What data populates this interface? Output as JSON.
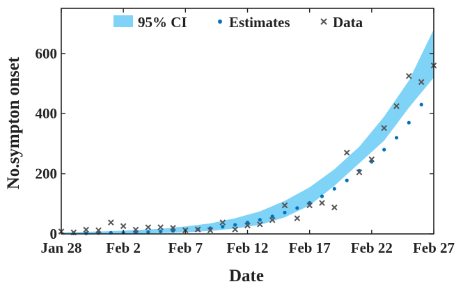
{
  "chart_data": {
    "type": "scatter",
    "xlabel": "Date",
    "ylabel": "No.sympton onset",
    "x_tick_labels": [
      "Jan 28",
      "Feb 2",
      "Feb 7",
      "Feb 12",
      "Feb 17",
      "Feb 22",
      "Feb 27"
    ],
    "y_tick_labels": [
      "0",
      "200",
      "400",
      "600"
    ],
    "xlim": [
      "2020-01-28",
      "2020-02-27"
    ],
    "ylim": [
      0,
      750
    ],
    "y_ticks": [
      0,
      200,
      400,
      600
    ],
    "legend_position": "top",
    "legend": [
      "95% CI",
      "Estimates",
      "Data"
    ],
    "colors": {
      "ci_band": "#7fd3f7",
      "estimates": "#0072bd",
      "data": "#555555"
    },
    "ci_band": {
      "x": [
        "2020-01-28",
        "2020-01-30",
        "2020-02-01",
        "2020-02-03",
        "2020-02-05",
        "2020-02-07",
        "2020-02-09",
        "2020-02-11",
        "2020-02-13",
        "2020-02-15",
        "2020-02-17",
        "2020-02-19",
        "2020-02-21",
        "2020-02-23",
        "2020-02-25",
        "2020-02-27"
      ],
      "lower": [
        0,
        0,
        0,
        1,
        3,
        5,
        10,
        18,
        30,
        55,
        95,
        160,
        235,
        310,
        420,
        520
      ],
      "upper": [
        5,
        7,
        9,
        13,
        17,
        25,
        35,
        52,
        75,
        110,
        155,
        215,
        290,
        390,
        510,
        680
      ]
    },
    "series": [
      {
        "name": "Estimates",
        "marker": "dot",
        "x": [
          "2020-01-29",
          "2020-01-30",
          "2020-01-31",
          "2020-02-01",
          "2020-02-02",
          "2020-02-03",
          "2020-02-04",
          "2020-02-05",
          "2020-02-06",
          "2020-02-07",
          "2020-02-08",
          "2020-02-09",
          "2020-02-10",
          "2020-02-11",
          "2020-02-12",
          "2020-02-13",
          "2020-02-14",
          "2020-02-15",
          "2020-02-16",
          "2020-02-17",
          "2020-02-18",
          "2020-02-19",
          "2020-02-20",
          "2020-02-21",
          "2020-02-22",
          "2020-02-23",
          "2020-02-24",
          "2020-02-25",
          "2020-02-26"
        ],
        "y": [
          2,
          2,
          3,
          4,
          4,
          5,
          6,
          8,
          10,
          12,
          15,
          19,
          24,
          30,
          38,
          47,
          58,
          71,
          86,
          103,
          125,
          150,
          178,
          210,
          240,
          280,
          320,
          370,
          430
        ]
      },
      {
        "name": "Data",
        "marker": "x",
        "x": [
          "2020-01-28",
          "2020-01-29",
          "2020-01-30",
          "2020-01-31",
          "2020-02-01",
          "2020-02-02",
          "2020-02-03",
          "2020-02-04",
          "2020-02-05",
          "2020-02-06",
          "2020-02-07",
          "2020-02-08",
          "2020-02-09",
          "2020-02-10",
          "2020-02-11",
          "2020-02-12",
          "2020-02-13",
          "2020-02-14",
          "2020-02-15",
          "2020-02-16",
          "2020-02-17",
          "2020-02-18",
          "2020-02-19",
          "2020-02-20",
          "2020-02-21",
          "2020-02-22",
          "2020-02-23",
          "2020-02-24",
          "2020-02-25",
          "2020-02-26",
          "2020-02-27"
        ],
        "y": [
          8,
          5,
          14,
          12,
          38,
          26,
          14,
          22,
          22,
          20,
          12,
          15,
          12,
          38,
          15,
          28,
          32,
          46,
          95,
          52,
          95,
          103,
          88,
          270,
          205,
          248,
          352,
          425,
          525,
          505,
          560
        ]
      }
    ]
  }
}
